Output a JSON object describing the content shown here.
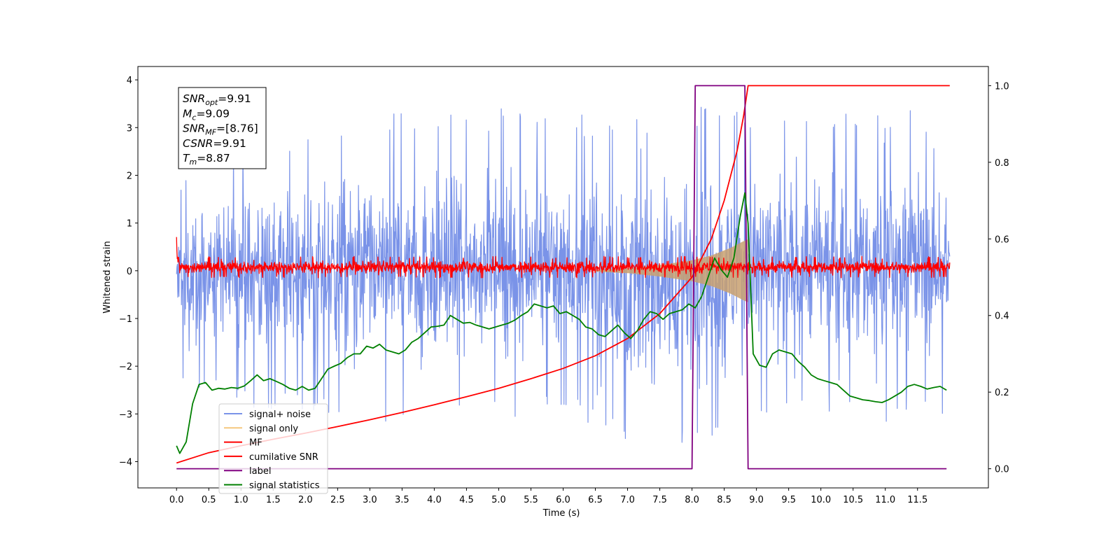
{
  "chart_data": {
    "type": "line",
    "title": "",
    "xlabel": "Time (s)",
    "ylabel": "Whitened strain",
    "xlim": [
      -0.6,
      12.6
    ],
    "ylim": [
      -4.55,
      4.28
    ],
    "y2lim": [
      -0.05,
      1.05
    ],
    "xticks": [
      0.0,
      0.5,
      1.0,
      1.5,
      2.0,
      2.5,
      3.0,
      3.5,
      4.0,
      4.5,
      5.0,
      5.5,
      6.0,
      6.5,
      7.0,
      7.5,
      8.0,
      8.5,
      9.0,
      9.5,
      10.0,
      10.5,
      11.0,
      11.5
    ],
    "xtick_labels": [
      "0.0",
      "0.5",
      "1.0",
      "1.5",
      "2.0",
      "2.5",
      "3.0",
      "3.5",
      "4.0",
      "4.5",
      "5.0",
      "5.5",
      "6.0",
      "6.5",
      "7.0",
      "7.5",
      "8.0",
      "8.5",
      "9.0",
      "9.5",
      "10.0",
      "10.5",
      "11.0",
      "11.5"
    ],
    "yticks": [
      -4,
      -3,
      -2,
      -1,
      0,
      1,
      2,
      3,
      4
    ],
    "ytick_labels": [
      "−4",
      "−3",
      "−2",
      "−1",
      "0",
      "1",
      "2",
      "3",
      "4"
    ],
    "y2ticks": [
      0.0,
      0.2,
      0.4,
      0.6,
      0.8,
      1.0
    ],
    "y2tick_labels": [
      "0.0",
      "0.2",
      "0.4",
      "0.6",
      "0.8",
      "1.0"
    ],
    "grid": false,
    "legend_position": "lower-left",
    "info_box": [
      {
        "sym": "SNR",
        "sub": "opt",
        "val": "=9.91"
      },
      {
        "sym": "M",
        "sub": "c",
        "val": "=9.09"
      },
      {
        "sym": "SNR",
        "sub": "MF",
        "val": "=[8.76]"
      },
      {
        "sym": "CSNR",
        "sub": "",
        "val": "=9.91"
      },
      {
        "sym": "T",
        "sub": "m",
        "val": "=8.87"
      }
    ],
    "series": [
      {
        "name": "signal+ noise",
        "axis": "left",
        "color": "#7a93e8",
        "style": "noise",
        "envelope_x": [
          0.0,
          1.0,
          2.0,
          3.0,
          4.0,
          5.0,
          6.0,
          7.0,
          8.0,
          8.87,
          9.0,
          10.0,
          11.0,
          12.0
        ],
        "envelope_upper": [
          1.9,
          2.9,
          2.9,
          3.3,
          3.3,
          3.4,
          3.3,
          3.2,
          3.4,
          3.6,
          3.3,
          3.3,
          3.4,
          3.3
        ],
        "envelope_lower": [
          -2.3,
          -2.9,
          -2.9,
          -3.2,
          -3.1,
          -3.1,
          -3.0,
          -3.6,
          -3.9,
          -3.6,
          -3.1,
          -3.1,
          -3.2,
          -3.1
        ]
      },
      {
        "name": "signal only",
        "axis": "left",
        "color": "#f5c77e",
        "style": "chirp",
        "x": [
          6.5,
          7.0,
          7.5,
          8.0,
          8.3,
          8.6,
          8.8,
          8.87
        ],
        "amplitude": [
          0.02,
          0.05,
          0.12,
          0.22,
          0.32,
          0.48,
          0.62,
          0.66
        ]
      },
      {
        "name": "MF",
        "axis": "left",
        "color": "#ff0000",
        "style": "noise",
        "envelope_x": [
          0.0,
          0.05,
          12.0
        ],
        "envelope_upper": [
          1.0,
          0.3,
          0.3
        ],
        "envelope_lower": [
          -0.1,
          -0.15,
          -0.15
        ]
      },
      {
        "name": "cumilative SNR",
        "axis": "right",
        "color": "#ff0000",
        "style": "line",
        "x": [
          0.0,
          0.5,
          1.0,
          1.5,
          2.0,
          2.5,
          3.0,
          3.5,
          4.0,
          4.5,
          5.0,
          5.5,
          6.0,
          6.5,
          7.0,
          7.5,
          8.0,
          8.3,
          8.5,
          8.7,
          8.8,
          8.87,
          12.0
        ],
        "values": [
          0.015,
          0.042,
          0.06,
          0.077,
          0.093,
          0.11,
          0.128,
          0.147,
          0.167,
          0.188,
          0.21,
          0.235,
          0.262,
          0.295,
          0.34,
          0.405,
          0.5,
          0.6,
          0.7,
          0.83,
          0.92,
          1.0,
          1.0
        ]
      },
      {
        "name": "label",
        "axis": "right",
        "color": "#800080",
        "style": "line",
        "x": [
          0.0,
          8.0,
          8.05,
          8.82,
          8.87,
          11.95
        ],
        "values": [
          0.0,
          0.0,
          1.0,
          1.0,
          0.0,
          0.0
        ]
      },
      {
        "name": "signal statistics",
        "axis": "right",
        "color": "#008000",
        "style": "line",
        "x": [
          0.0,
          0.05,
          0.15,
          0.25,
          0.35,
          0.45,
          0.55,
          0.65,
          0.75,
          0.85,
          0.95,
          1.05,
          1.15,
          1.25,
          1.35,
          1.45,
          1.55,
          1.65,
          1.75,
          1.85,
          1.95,
          2.05,
          2.15,
          2.25,
          2.35,
          2.45,
          2.55,
          2.65,
          2.75,
          2.85,
          2.95,
          3.05,
          3.15,
          3.25,
          3.35,
          3.45,
          3.55,
          3.65,
          3.75,
          3.85,
          3.95,
          4.05,
          4.15,
          4.25,
          4.35,
          4.45,
          4.55,
          4.65,
          4.75,
          4.85,
          4.95,
          5.05,
          5.15,
          5.25,
          5.35,
          5.45,
          5.55,
          5.65,
          5.75,
          5.85,
          5.95,
          6.05,
          6.15,
          6.25,
          6.35,
          6.45,
          6.55,
          6.65,
          6.75,
          6.85,
          6.95,
          7.05,
          7.15,
          7.25,
          7.35,
          7.45,
          7.55,
          7.65,
          7.75,
          7.85,
          7.95,
          8.05,
          8.15,
          8.25,
          8.35,
          8.45,
          8.55,
          8.65,
          8.75,
          8.82,
          8.87,
          8.95,
          9.05,
          9.15,
          9.25,
          9.35,
          9.45,
          9.55,
          9.65,
          9.75,
          9.85,
          9.95,
          10.05,
          10.15,
          10.25,
          10.35,
          10.45,
          10.55,
          10.65,
          10.75,
          10.85,
          10.95,
          11.05,
          11.15,
          11.25,
          11.35,
          11.45,
          11.55,
          11.65,
          11.75,
          11.85,
          11.95
        ],
        "values": [
          0.06,
          0.04,
          0.07,
          0.17,
          0.22,
          0.225,
          0.205,
          0.21,
          0.208,
          0.212,
          0.21,
          0.216,
          0.23,
          0.245,
          0.23,
          0.235,
          0.228,
          0.22,
          0.21,
          0.205,
          0.215,
          0.205,
          0.21,
          0.235,
          0.26,
          0.268,
          0.275,
          0.29,
          0.3,
          0.3,
          0.32,
          0.315,
          0.325,
          0.31,
          0.305,
          0.3,
          0.31,
          0.33,
          0.34,
          0.355,
          0.37,
          0.372,
          0.375,
          0.4,
          0.39,
          0.38,
          0.382,
          0.375,
          0.37,
          0.365,
          0.37,
          0.375,
          0.38,
          0.388,
          0.4,
          0.41,
          0.43,
          0.425,
          0.42,
          0.425,
          0.405,
          0.41,
          0.4,
          0.39,
          0.37,
          0.365,
          0.35,
          0.345,
          0.36,
          0.375,
          0.355,
          0.34,
          0.36,
          0.39,
          0.41,
          0.405,
          0.39,
          0.405,
          0.41,
          0.415,
          0.43,
          0.42,
          0.45,
          0.5,
          0.55,
          0.52,
          0.5,
          0.55,
          0.66,
          0.72,
          0.64,
          0.3,
          0.27,
          0.265,
          0.3,
          0.31,
          0.305,
          0.3,
          0.28,
          0.265,
          0.245,
          0.235,
          0.23,
          0.225,
          0.22,
          0.205,
          0.19,
          0.185,
          0.18,
          0.178,
          0.175,
          0.173,
          0.18,
          0.19,
          0.2,
          0.215,
          0.22,
          0.215,
          0.208,
          0.212,
          0.215,
          0.205
        ]
      }
    ]
  }
}
